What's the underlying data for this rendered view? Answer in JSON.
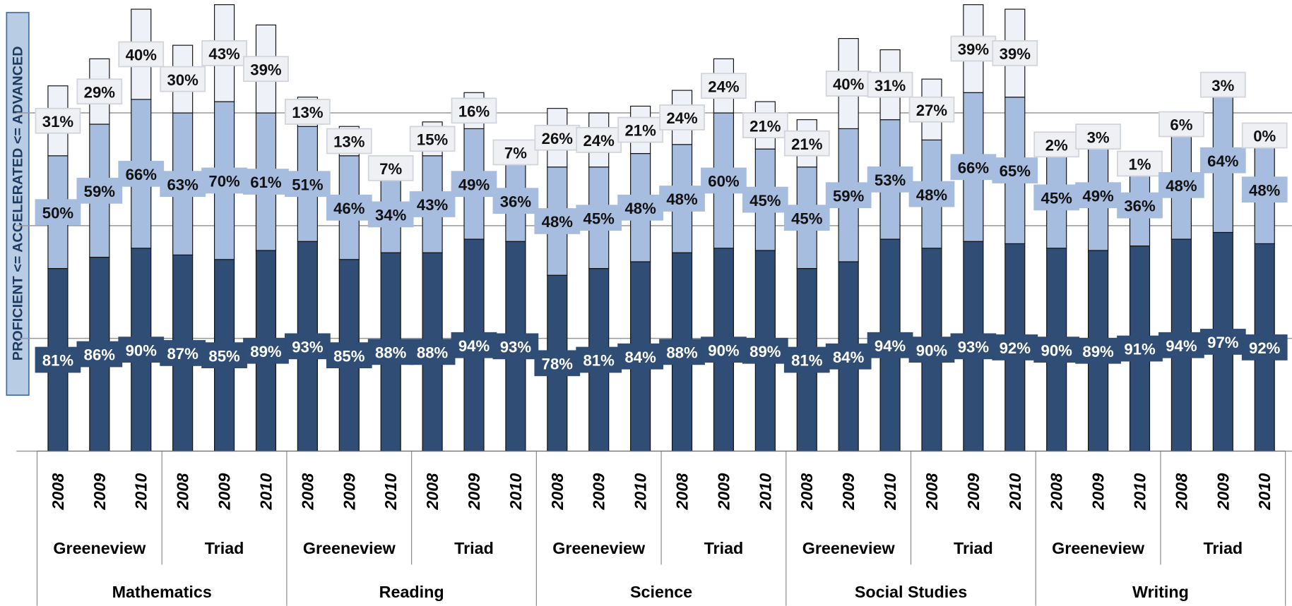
{
  "chart_data": {
    "type": "stacked_bar",
    "y_label": "PROFICIENT <= ACCELERATED <= ADVANCED",
    "categories": [
      "2008",
      "2009",
      "2010",
      "2008",
      "2009",
      "2010",
      "2008",
      "2009",
      "2010",
      "2008",
      "2009",
      "2010",
      "2008",
      "2009",
      "2010",
      "2008",
      "2009",
      "2010",
      "2008",
      "2009",
      "2010",
      "2008",
      "2009",
      "2010",
      "2008",
      "2009",
      "2010",
      "2008",
      "2009",
      "2010"
    ],
    "groups": [
      "Greeneview",
      "Triad",
      "Greeneview",
      "Triad",
      "Greeneview",
      "Triad",
      "Greeneview",
      "Triad",
      "Greeneview",
      "Triad"
    ],
    "subjects": [
      "Mathematics",
      "Reading",
      "Science",
      "Social Studies",
      "Writing"
    ],
    "ylim": [
      0,
      200
    ],
    "yticks": [
      0,
      50,
      100,
      150
    ],
    "grid": true,
    "series": [
      {
        "color": "#2f4d75",
        "label_color": "#ffffff",
        "values": [
          81,
          86,
          90,
          87,
          85,
          89,
          93,
          85,
          88,
          88,
          94,
          93,
          78,
          81,
          84,
          88,
          90,
          89,
          81,
          84,
          94,
          90,
          93,
          92,
          90,
          89,
          91,
          94,
          97,
          92
        ],
        "value_labels": [
          "81%",
          "86%",
          "90%",
          "87%",
          "85%",
          "89%",
          "93%",
          "85%",
          "88%",
          "88%",
          "94%",
          "93%",
          "78%",
          "81%",
          "84%",
          "88%",
          "90%",
          "89%",
          "81%",
          "84%",
          "94%",
          "90%",
          "93%",
          "92%",
          "90%",
          "89%",
          "91%",
          "94%",
          "97%",
          "92%"
        ]
      },
      {
        "color": "#a7bde0",
        "label_color": "#111111",
        "values": [
          50,
          59,
          66,
          63,
          70,
          61,
          51,
          46,
          34,
          43,
          49,
          36,
          48,
          45,
          48,
          48,
          60,
          45,
          45,
          59,
          53,
          48,
          66,
          65,
          45,
          49,
          36,
          48,
          64,
          48
        ],
        "value_labels": [
          "50%",
          "59%",
          "66%",
          "63%",
          "70%",
          "61%",
          "51%",
          "46%",
          "34%",
          "43%",
          "49%",
          "36%",
          "48%",
          "45%",
          "48%",
          "48%",
          "60%",
          "45%",
          "45%",
          "59%",
          "53%",
          "48%",
          "66%",
          "65%",
          "45%",
          "49%",
          "36%",
          "48%",
          "64%",
          "48%"
        ]
      },
      {
        "color": "#eef2f8",
        "label_color": "#111111",
        "values": [
          31,
          29,
          40,
          30,
          43,
          39,
          13,
          13,
          7,
          15,
          16,
          7,
          26,
          24,
          21,
          24,
          24,
          21,
          21,
          40,
          31,
          27,
          39,
          39,
          2,
          3,
          1,
          6,
          3,
          0
        ],
        "value_labels": [
          "31%",
          "29%",
          "40%",
          "30%",
          "43%",
          "39%",
          "13%",
          "13%",
          "7%",
          "15%",
          "16%",
          "7%",
          "26%",
          "24%",
          "21%",
          "24%",
          "24%",
          "21%",
          "21%",
          "40%",
          "31%",
          "27%",
          "39%",
          "39%",
          "2%",
          "3%",
          "1%",
          "6%",
          "3%",
          "0%"
        ]
      }
    ]
  }
}
